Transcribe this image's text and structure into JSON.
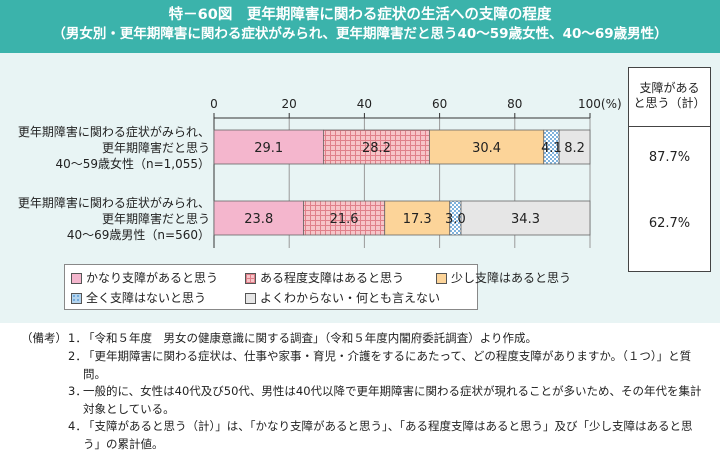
{
  "header": {
    "title": "特－60図　更年期障害に関わる症状の生活への支障の程度",
    "subtitle": "（男女別・更年期障害に関わる症状がみられ、更年期障害だと思う40～59歳女性、40～69歳男性）"
  },
  "chart_data": {
    "type": "bar",
    "orientation": "horizontal",
    "stacked": true,
    "xlim": [
      0,
      100
    ],
    "x_ticks": [
      "0",
      "20",
      "40",
      "60",
      "80",
      "100(%)"
    ],
    "categories": [
      [
        "更年期障害に関わる症状がみられ、",
        "更年期障害だと思う",
        "40～59歳女性（n=1,055）"
      ],
      [
        "更年期障害に関わる症状がみられ、",
        "更年期障害だと思う",
        "40～69歳男性（n=560）"
      ]
    ],
    "series": [
      {
        "name": "かなり支障があると思う",
        "values": [
          29.1,
          23.8
        ],
        "labels": [
          "29.1",
          "23.8"
        ]
      },
      {
        "name": "ある程度支障はあると思う",
        "values": [
          28.2,
          21.6
        ],
        "labels": [
          "28.2",
          "21.6"
        ]
      },
      {
        "name": "少し支障はあると思う",
        "values": [
          30.4,
          17.3
        ],
        "labels": [
          "30.4",
          "17.3"
        ]
      },
      {
        "name": "全く支障はないと思う",
        "values": [
          4.1,
          3.0
        ],
        "labels": [
          "4.1",
          "3.0"
        ]
      },
      {
        "name": "よくわからない・何とも言えない",
        "values": [
          8.2,
          34.3
        ],
        "labels": [
          "8.2",
          "34.3"
        ]
      }
    ],
    "summary": {
      "header": [
        "支障がある",
        "と思う（計）"
      ],
      "values": [
        "87.7%",
        "62.7%"
      ]
    }
  },
  "colors": {
    "header_bg": "#3bb3ab",
    "panel_bg": "#e8f4f4",
    "s1": "#f4b6cd",
    "s2": "#f5b3b8",
    "s3": "#fcd499",
    "s4": "#b4d4ee",
    "s5": "#e6e6e6"
  },
  "notes": {
    "label": "（備考）",
    "items": [
      {
        "num": "1．",
        "text": "「令和５年度　男女の健康意識に関する調査」（令和５年度内閣府委託調査）より作成。"
      },
      {
        "num": "2．",
        "text": "「更年期障害に関わる症状は、仕事や家事・育児・介護をするにあたって、どの程度支障がありますか。（１つ）」と質問。"
      },
      {
        "num": "3．",
        "text": "一般的に、女性は40代及び50代、男性は40代以降で更年期障害に関わる症状が現れることが多いため、その年代を集計対象としている。"
      },
      {
        "num": "4．",
        "text": "「支障があると思う（計）」は、「かなり支障があると思う」、「ある程度支障はあると思う」及び「少し支障はあると思う」の累計値。"
      }
    ]
  }
}
